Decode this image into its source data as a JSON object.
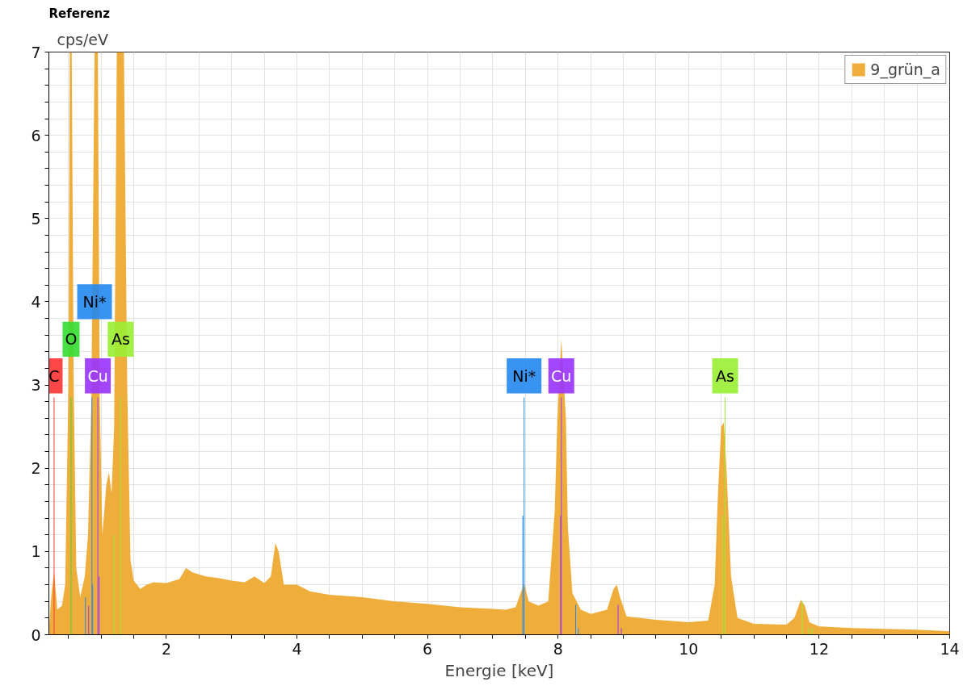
{
  "chart_data": {
    "type": "area",
    "title": "Referenz",
    "xlabel": "Energie [keV]",
    "ylabel": "cps/eV",
    "xlim": [
      0.2,
      14
    ],
    "ylim": [
      0,
      7
    ],
    "xticks": [
      {
        "value": 0.5,
        "label": null
      },
      {
        "value": 1,
        "label": null
      },
      {
        "value": 1.5,
        "label": null
      },
      2,
      {
        "value": 2.5,
        "label": null
      },
      {
        "value": 3,
        "label": null
      },
      {
        "value": 3.5,
        "label": null
      },
      4,
      {
        "value": 4.5,
        "label": null
      },
      {
        "value": 5,
        "label": null
      },
      {
        "value": 5.5,
        "label": null
      },
      6,
      {
        "value": 6.5,
        "label": null
      },
      {
        "value": 7,
        "label": null
      },
      {
        "value": 7.5,
        "label": null
      },
      8,
      {
        "value": 8.5,
        "label": null
      },
      {
        "value": 9,
        "label": null
      },
      {
        "value": 9.5,
        "label": null
      },
      10,
      {
        "value": 10.5,
        "label": null
      },
      {
        "value": 11,
        "label": null
      },
      {
        "value": 11.5,
        "label": null
      },
      12,
      {
        "value": 12.5,
        "label": null
      },
      {
        "value": 13,
        "label": null
      },
      {
        "value": 13.5,
        "label": null
      },
      14
    ],
    "yticks": [
      0,
      {
        "value": 0.2,
        "label": null
      },
      {
        "value": 0.4,
        "label": null
      },
      {
        "value": 0.6,
        "label": null
      },
      {
        "value": 0.8,
        "label": null
      },
      1,
      {
        "value": 1.2,
        "label": null
      },
      {
        "value": 1.4,
        "label": null
      },
      {
        "value": 1.6,
        "label": null
      },
      {
        "value": 1.8,
        "label": null
      },
      2,
      {
        "value": 2.2,
        "label": null
      },
      {
        "value": 2.4,
        "label": null
      },
      {
        "value": 2.6,
        "label": null
      },
      {
        "value": 2.8,
        "label": null
      },
      3,
      {
        "value": 3.2,
        "label": null
      },
      {
        "value": 3.4,
        "label": null
      },
      {
        "value": 3.6,
        "label": null
      },
      {
        "value": 3.8,
        "label": null
      },
      4,
      {
        "value": 4.2,
        "label": null
      },
      {
        "value": 4.4,
        "label": null
      },
      {
        "value": 4.6,
        "label": null
      },
      {
        "value": 4.8,
        "label": null
      },
      5,
      {
        "value": 5.2,
        "label": null
      },
      {
        "value": 5.4,
        "label": null
      },
      {
        "value": 5.6,
        "label": null
      },
      {
        "value": 5.8,
        "label": null
      },
      6,
      {
        "value": 6.2,
        "label": null
      },
      {
        "value": 6.4,
        "label": null
      },
      {
        "value": 6.6,
        "label": null
      },
      {
        "value": 6.8,
        "label": null
      },
      7
    ],
    "grid": true,
    "legend": "top right",
    "series": [
      {
        "name": "9_grün_a",
        "color": "#efae3c",
        "x": [
          0.2,
          0.24,
          0.28,
          0.33,
          0.4,
          0.45,
          0.5,
          0.52,
          0.55,
          0.58,
          0.62,
          0.68,
          0.75,
          0.8,
          0.85,
          0.9,
          0.95,
          0.98,
          1.02,
          1.08,
          1.12,
          1.16,
          1.2,
          1.24,
          1.35,
          1.4,
          1.45,
          1.5,
          1.6,
          1.7,
          1.8,
          2.0,
          2.2,
          2.3,
          2.4,
          2.6,
          2.8,
          3.0,
          3.2,
          3.35,
          3.5,
          3.6,
          3.67,
          3.72,
          3.8,
          4.0,
          4.2,
          4.5,
          5.0,
          5.5,
          6.0,
          6.5,
          7.0,
          7.2,
          7.35,
          7.45,
          7.48,
          7.55,
          7.7,
          7.85,
          7.95,
          7.99,
          8.05,
          8.12,
          8.15,
          8.22,
          8.35,
          8.5,
          8.75,
          8.85,
          8.9,
          8.95,
          9.05,
          9.5,
          10.0,
          10.3,
          10.4,
          10.45,
          10.5,
          10.54,
          10.58,
          10.65,
          10.75,
          11.0,
          11.5,
          11.62,
          11.72,
          11.78,
          11.85,
          12.0,
          12.5,
          13.0,
          13.5,
          14.0
        ],
        "values": [
          0.05,
          0.5,
          0.75,
          0.3,
          0.35,
          0.6,
          3.0,
          7,
          7,
          3.0,
          0.8,
          0.45,
          0.7,
          1.2,
          2.8,
          7,
          7,
          2.8,
          1.2,
          1.8,
          1.95,
          1.7,
          2.5,
          7,
          7,
          3.0,
          0.9,
          0.65,
          0.55,
          0.6,
          0.63,
          0.62,
          0.67,
          0.8,
          0.75,
          0.7,
          0.68,
          0.65,
          0.63,
          0.7,
          0.62,
          0.7,
          1.1,
          1.0,
          0.6,
          0.6,
          0.52,
          0.48,
          0.45,
          0.4,
          0.37,
          0.33,
          0.31,
          0.3,
          0.33,
          0.55,
          0.62,
          0.4,
          0.35,
          0.4,
          1.5,
          2.6,
          3.55,
          2.6,
          1.3,
          0.5,
          0.3,
          0.25,
          0.3,
          0.55,
          0.6,
          0.45,
          0.22,
          0.18,
          0.15,
          0.17,
          0.6,
          1.7,
          2.5,
          2.55,
          2.0,
          0.7,
          0.2,
          0.13,
          0.12,
          0.2,
          0.42,
          0.35,
          0.15,
          0.1,
          0.08,
          0.07,
          0.06,
          0.04
        ]
      },
      {
        "type": "bar",
        "color": "#ff3333",
        "x": [
          0.28
        ],
        "values": [
          2.85
        ]
      },
      {
        "type": "bar",
        "color": "#33dd33",
        "x": [
          0.54
        ],
        "values": [
          2.85
        ]
      },
      {
        "type": "bar",
        "color": "#2288ee",
        "x": [
          0.76,
          0.86,
          0.87,
          7.46,
          7.48,
          8.27,
          8.31
        ],
        "values": [
          0.45,
          2.85,
          0.6,
          1.43,
          2.85,
          0.36,
          0.08
        ]
      },
      {
        "type": "bar",
        "color": "#9933ff",
        "x": [
          0.81,
          0.95,
          0.97,
          8.04,
          8.05,
          8.92,
          8.97
        ],
        "values": [
          0.35,
          2.85,
          0.7,
          1.43,
          2.85,
          0.36,
          0.08
        ]
      },
      {
        "type": "bar",
        "color": "#99ee33",
        "x": [
          1.2,
          1.3,
          10.52,
          10.56,
          11.74,
          11.84,
          11.89
        ],
        "values": [
          1.2,
          2.85,
          1.43,
          2.85,
          0.4,
          0.08,
          0.08
        ]
      }
    ],
    "annotations": [
      {
        "text": "C",
        "x": 0.28,
        "y": 3.11
      },
      {
        "text": "Cu",
        "x": 0.95,
        "y": 3.11
      },
      {
        "text": "O",
        "x": 0.54,
        "y": 3.55
      },
      {
        "text": "As",
        "x": 1.3,
        "y": 3.55
      },
      {
        "text": "Ni*",
        "x": 0.9,
        "y": 4.0
      },
      {
        "text": "Cu",
        "x": 8.05,
        "y": 3.11
      },
      {
        "text": "As",
        "x": 10.56,
        "y": 3.11
      },
      {
        "text": "Ni*",
        "x": 7.48,
        "y": 3.11
      }
    ]
  }
}
